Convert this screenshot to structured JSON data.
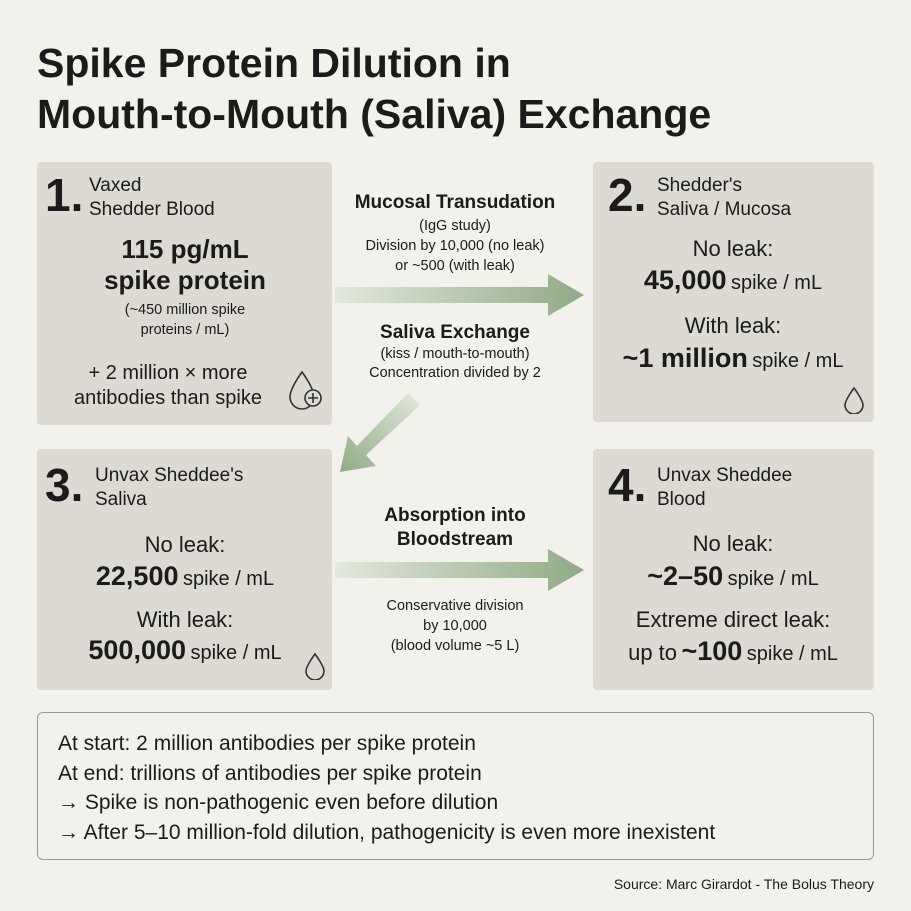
{
  "title": [
    "Spike Protein Dilution in",
    "Mouth-to-Mouth (Saliva) Exchange"
  ],
  "boxes": [
    {
      "number": "1.",
      "heading": [
        "Vaxed",
        "Shedder Blood"
      ],
      "amount": [
        "115 pg/mL",
        "spike protein"
      ],
      "note": [
        "(~450 million spike",
        "proteins / mL)"
      ],
      "extra": [
        "+ 2 million × more",
        "antibodies than spike"
      ]
    },
    {
      "number": "2.",
      "heading": [
        "Shedder's",
        "Saliva / Mucosa"
      ],
      "rows": [
        {
          "label": "No leak:",
          "amount": "45,000",
          "unit": "spike / mL"
        },
        {
          "label": "With leak:",
          "amount": "~1 million",
          "unit": "spike / mL"
        }
      ]
    },
    {
      "number": "3.",
      "heading": [
        "Unvax Sheddee's",
        "Saliva"
      ],
      "rows": [
        {
          "label": "No leak:",
          "amount": "22,500",
          "unit": "spike / mL"
        },
        {
          "label": "With leak:",
          "amount": "500,000",
          "unit": "spike / mL"
        }
      ]
    },
    {
      "number": "4.",
      "heading": [
        "Unvax Sheddee",
        "Blood"
      ],
      "rows": [
        {
          "label": "No leak:",
          "amount": "~2–50",
          "unit": "spike / mL"
        },
        {
          "label": "Extreme direct leak:",
          "prefix": "up to",
          "amount": "~100",
          "unit": "spike / mL"
        }
      ]
    }
  ],
  "steps": [
    {
      "title": [
        "Mucosal Transudation"
      ],
      "lines": [
        "(IgG study)",
        "Division by 10,000 (no leak)",
        "or ~500 (with leak)"
      ]
    },
    {
      "title": [
        "Saliva Exchange"
      ],
      "lines": [
        "(kiss / mouth-to-mouth)",
        "Concentration divided by 2"
      ]
    },
    {
      "title": [
        "Absorption into",
        "Bloodstream"
      ],
      "lines": [
        "Conservative division",
        "by 10,000",
        "(blood volume ~5 L)"
      ]
    }
  ],
  "summary": [
    "At start: 2 million antibodies per spike protein",
    "At end: trillions of antibodies per spike protein",
    "→ Spike is non-pathogenic even before dilution",
    "→ After 5–10 million-fold dilution, pathogenicity is even more inexistent"
  ],
  "source": "Source: Marc Girardot - The Bolus Theory"
}
